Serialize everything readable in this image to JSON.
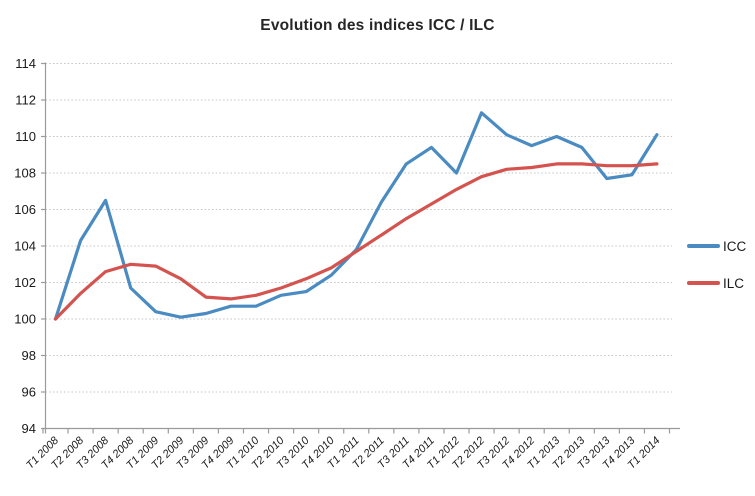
{
  "chart_data": {
    "type": "line",
    "title": "Evolution des indices ICC / ILC",
    "categories": [
      "T1 2008",
      "T2 2008",
      "T3 2008",
      "T4 2008",
      "T1 2009",
      "T2 2009",
      "T3 2009",
      "T4 2009",
      "T1 2010",
      "T2 2010",
      "T3 2010",
      "T4 2010",
      "T1 2011",
      "T2 2011",
      "T3 2011",
      "T4 2011",
      "T1 2012",
      "T2 2012",
      "T3 2012",
      "T4 2012",
      "T1 2013",
      "T2 2013",
      "T3 2013",
      "T4 2013",
      "T1 2014"
    ],
    "series": [
      {
        "name": "ICC",
        "color": "#4A8BC2",
        "values": [
          100.0,
          104.3,
          106.5,
          101.7,
          100.4,
          100.1,
          100.3,
          100.7,
          100.7,
          101.3,
          101.5,
          102.4,
          103.8,
          106.4,
          108.5,
          109.4,
          108.0,
          111.3,
          110.1,
          109.5,
          110.0,
          109.4,
          107.7,
          107.9,
          110.1
        ]
      },
      {
        "name": "ILC",
        "color": "#D4534F",
        "values": [
          100.0,
          101.4,
          102.6,
          103.0,
          102.9,
          102.2,
          101.2,
          101.1,
          101.3,
          101.7,
          102.2,
          102.8,
          103.7,
          104.6,
          105.5,
          106.3,
          107.1,
          107.8,
          108.2,
          108.3,
          108.5,
          108.5,
          108.4,
          108.4,
          108.5
        ]
      }
    ],
    "ylim": [
      94,
      114
    ],
    "ytick_step": 2,
    "xlabel": "",
    "ylabel": "",
    "grid": "horizontal-dotted",
    "legend_position": "right",
    "colors": {
      "background": "#FFFFFF",
      "gridline": "#C4C4C4",
      "axis": "#9B9B9B",
      "label_text": "#1A1A1A",
      "title_text": "#262626"
    }
  }
}
